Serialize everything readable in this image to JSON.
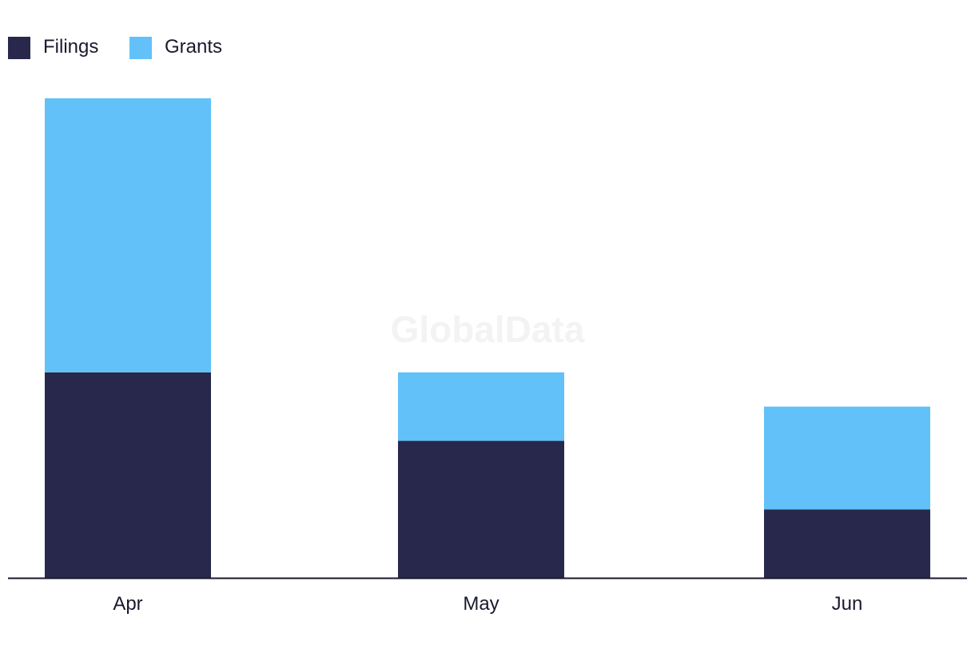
{
  "watermark": "GlobalData",
  "chart_data": {
    "type": "bar",
    "stacked": true,
    "categories": [
      "Apr",
      "May",
      "Jun"
    ],
    "series": [
      {
        "name": "Filings",
        "values": [
          6,
          4,
          2
        ],
        "color": "#27284b"
      },
      {
        "name": "Grants",
        "values": [
          8,
          2,
          3
        ],
        "color": "#62c1f9"
      }
    ],
    "ylim": [
      0,
      14
    ],
    "grid": false,
    "legend": "top-left",
    "title": "",
    "xlabel": "",
    "ylabel": ""
  }
}
